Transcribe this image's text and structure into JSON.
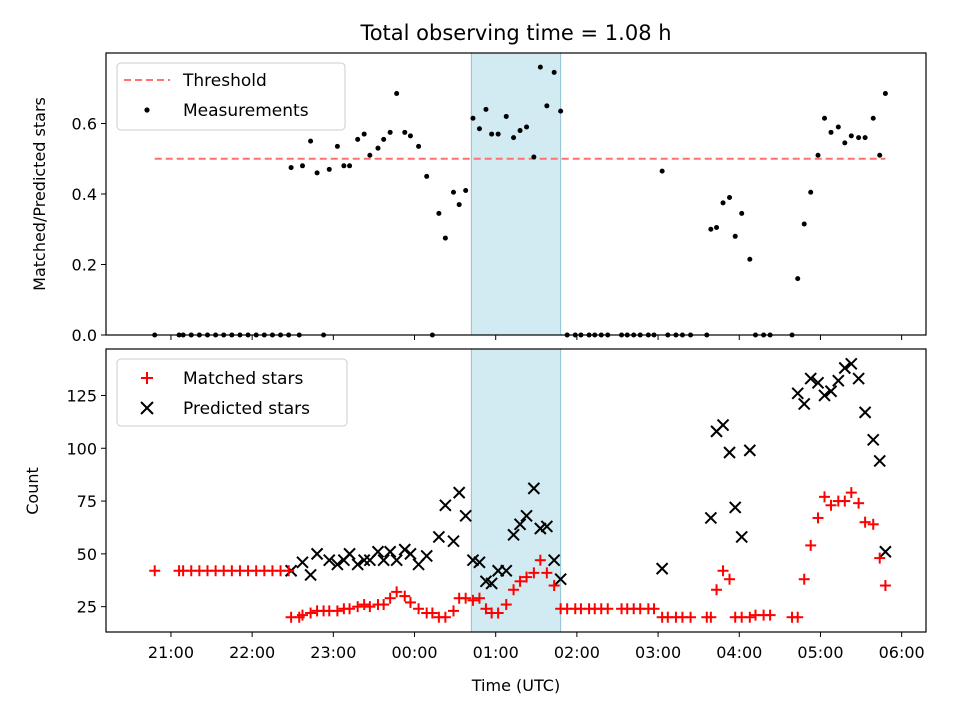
{
  "chart_data": [
    {
      "type": "scatter",
      "title": "Total observing time = 1.08 h",
      "xlabel": "",
      "ylabel": "Matched/Predicted stars",
      "ylim": [
        0,
        0.8
      ],
      "yticks": [
        0.0,
        0.2,
        0.4,
        0.6
      ],
      "ytick_labels": [
        "0.0",
        "0.2",
        "0.4",
        "0.6"
      ],
      "xlim_hours": [
        20.2,
        30.3
      ],
      "highlight_span_hours": [
        24.7,
        25.8
      ],
      "highlight_color": "#add8e6",
      "legend_position": "upper left",
      "threshold": {
        "name": "Threshold",
        "value": 0.5,
        "x_range_hours": [
          20.8,
          29.8
        ],
        "color": "#ff7070"
      },
      "series": [
        {
          "name": "Measurements",
          "color": "#000000",
          "marker": "dot",
          "points": [
            [
              20.8,
              0
            ],
            [
              21.1,
              0
            ],
            [
              21.15,
              0
            ],
            [
              21.25,
              0
            ],
            [
              21.35,
              0
            ],
            [
              21.45,
              0
            ],
            [
              21.55,
              0
            ],
            [
              21.65,
              0
            ],
            [
              21.75,
              0
            ],
            [
              21.85,
              0
            ],
            [
              21.95,
              0
            ],
            [
              22.05,
              0
            ],
            [
              22.15,
              0
            ],
            [
              22.25,
              0
            ],
            [
              22.35,
              0
            ],
            [
              22.45,
              0
            ],
            [
              22.48,
              0.475
            ],
            [
              22.58,
              0
            ],
            [
              22.62,
              0.48
            ],
            [
              22.72,
              0.55
            ],
            [
              22.8,
              0.46
            ],
            [
              22.88,
              0
            ],
            [
              22.95,
              0.47
            ],
            [
              23.05,
              0.535
            ],
            [
              23.13,
              0.48
            ],
            [
              23.2,
              0.48
            ],
            [
              23.3,
              0.555
            ],
            [
              23.38,
              0.57
            ],
            [
              23.45,
              0.51
            ],
            [
              23.55,
              0.53
            ],
            [
              23.62,
              0.555
            ],
            [
              23.7,
              0.575
            ],
            [
              23.78,
              0.685
            ],
            [
              23.88,
              0.575
            ],
            [
              23.95,
              0.565
            ],
            [
              24.05,
              0.535
            ],
            [
              24.15,
              0.45
            ],
            [
              24.22,
              0
            ],
            [
              24.3,
              0.345
            ],
            [
              24.38,
              0.275
            ],
            [
              24.48,
              0.405
            ],
            [
              24.55,
              0.37
            ],
            [
              24.63,
              0.41
            ],
            [
              24.72,
              0.615
            ],
            [
              24.8,
              0.585
            ],
            [
              24.88,
              0.64
            ],
            [
              24.95,
              0.57
            ],
            [
              25.03,
              0.57
            ],
            [
              25.13,
              0.62
            ],
            [
              25.22,
              0.56
            ],
            [
              25.3,
              0.58
            ],
            [
              25.38,
              0.59
            ],
            [
              25.47,
              0.505
            ],
            [
              25.55,
              0.76
            ],
            [
              25.63,
              0.65
            ],
            [
              25.72,
              0.745
            ],
            [
              25.8,
              0.635
            ],
            [
              25.88,
              0
            ],
            [
              25.98,
              0
            ],
            [
              26.05,
              0
            ],
            [
              26.15,
              0
            ],
            [
              26.22,
              0
            ],
            [
              26.3,
              0
            ],
            [
              26.38,
              0
            ],
            [
              26.55,
              0
            ],
            [
              26.62,
              0
            ],
            [
              26.7,
              0
            ],
            [
              26.78,
              0
            ],
            [
              26.88,
              0
            ],
            [
              26.95,
              0
            ],
            [
              27.05,
              0.465
            ],
            [
              27.12,
              0
            ],
            [
              27.22,
              0
            ],
            [
              27.3,
              0
            ],
            [
              27.4,
              0
            ],
            [
              27.6,
              0
            ],
            [
              27.65,
              0.3
            ],
            [
              27.72,
              0.305
            ],
            [
              27.8,
              0.375
            ],
            [
              27.88,
              0.39
            ],
            [
              27.95,
              0.28
            ],
            [
              28.03,
              0.345
            ],
            [
              28.13,
              0.215
            ],
            [
              28.2,
              0
            ],
            [
              28.3,
              0
            ],
            [
              28.38,
              0
            ],
            [
              28.65,
              0
            ],
            [
              28.72,
              0.16
            ],
            [
              28.8,
              0.315
            ],
            [
              28.88,
              0.405
            ],
            [
              28.97,
              0.51
            ],
            [
              29.05,
              0.615
            ],
            [
              29.13,
              0.575
            ],
            [
              29.22,
              0.59
            ],
            [
              29.3,
              0.545
            ],
            [
              29.38,
              0.565
            ],
            [
              29.47,
              0.56
            ],
            [
              29.55,
              0.56
            ],
            [
              29.65,
              0.615
            ],
            [
              29.73,
              0.51
            ],
            [
              29.8,
              0.685
            ]
          ]
        }
      ]
    },
    {
      "type": "scatter",
      "xlabel": "Time (UTC)",
      "ylabel": "Count",
      "ylim": [
        13,
        147
      ],
      "yticks": [
        25,
        50,
        75,
        100,
        125
      ],
      "ytick_labels": [
        "25",
        "50",
        "75",
        "100",
        "125"
      ],
      "xlim_hours": [
        20.2,
        30.3
      ],
      "xticks_hours": [
        21,
        22,
        23,
        24,
        25,
        26,
        27,
        28,
        29,
        30
      ],
      "xtick_labels": [
        "21:00",
        "22:00",
        "23:00",
        "00:00",
        "01:00",
        "02:00",
        "03:00",
        "04:00",
        "05:00",
        "06:00"
      ],
      "highlight_span_hours": [
        24.7,
        25.8
      ],
      "highlight_color": "#add8e6",
      "legend_position": "upper left",
      "series": [
        {
          "name": "Matched stars",
          "color": "#ff0000",
          "marker": "plus",
          "points": [
            [
              20.8,
              42
            ],
            [
              21.1,
              42
            ],
            [
              21.15,
              42
            ],
            [
              21.25,
              42
            ],
            [
              21.35,
              42
            ],
            [
              21.45,
              42
            ],
            [
              21.55,
              42
            ],
            [
              21.65,
              42
            ],
            [
              21.75,
              42
            ],
            [
              21.85,
              42
            ],
            [
              21.95,
              42
            ],
            [
              22.05,
              42
            ],
            [
              22.15,
              42
            ],
            [
              22.25,
              42
            ],
            [
              22.35,
              42
            ],
            [
              22.45,
              42
            ],
            [
              22.48,
              20
            ],
            [
              22.58,
              20
            ],
            [
              22.62,
              21
            ],
            [
              22.72,
              22
            ],
            [
              22.8,
              23
            ],
            [
              22.88,
              23
            ],
            [
              22.95,
              23
            ],
            [
              23.05,
              23
            ],
            [
              23.13,
              24
            ],
            [
              23.2,
              24
            ],
            [
              23.3,
              25
            ],
            [
              23.38,
              26
            ],
            [
              23.45,
              25
            ],
            [
              23.55,
              26
            ],
            [
              23.62,
              26
            ],
            [
              23.7,
              29
            ],
            [
              23.78,
              32
            ],
            [
              23.88,
              30
            ],
            [
              23.95,
              27
            ],
            [
              24.05,
              24
            ],
            [
              24.15,
              22
            ],
            [
              24.22,
              22
            ],
            [
              24.3,
              20
            ],
            [
              24.38,
              20
            ],
            [
              24.48,
              23
            ],
            [
              24.55,
              29
            ],
            [
              24.63,
              29
            ],
            [
              24.72,
              28
            ],
            [
              24.8,
              29
            ],
            [
              24.88,
              24
            ],
            [
              24.95,
              22
            ],
            [
              25.03,
              22
            ],
            [
              25.13,
              26
            ],
            [
              25.22,
              33
            ],
            [
              25.3,
              37
            ],
            [
              25.38,
              39
            ],
            [
              25.47,
              41
            ],
            [
              25.55,
              47
            ],
            [
              25.63,
              41
            ],
            [
              25.72,
              35
            ],
            [
              25.8,
              24
            ],
            [
              25.88,
              24
            ],
            [
              25.98,
              24
            ],
            [
              26.05,
              24
            ],
            [
              26.15,
              24
            ],
            [
              26.22,
              24
            ],
            [
              26.3,
              24
            ],
            [
              26.38,
              24
            ],
            [
              26.55,
              24
            ],
            [
              26.62,
              24
            ],
            [
              26.7,
              24
            ],
            [
              26.78,
              24
            ],
            [
              26.88,
              24
            ],
            [
              26.95,
              24
            ],
            [
              27.05,
              20
            ],
            [
              27.12,
              20
            ],
            [
              27.22,
              20
            ],
            [
              27.3,
              20
            ],
            [
              27.4,
              20
            ],
            [
              27.6,
              20
            ],
            [
              27.65,
              20
            ],
            [
              27.72,
              33
            ],
            [
              27.8,
              42
            ],
            [
              27.88,
              38
            ],
            [
              27.95,
              20
            ],
            [
              28.03,
              20
            ],
            [
              28.13,
              20
            ],
            [
              28.2,
              21
            ],
            [
              28.3,
              21
            ],
            [
              28.38,
              21
            ],
            [
              28.65,
              20
            ],
            [
              28.72,
              20
            ],
            [
              28.8,
              38
            ],
            [
              28.88,
              54
            ],
            [
              28.97,
              67
            ],
            [
              29.05,
              77
            ],
            [
              29.13,
              73
            ],
            [
              29.22,
              75
            ],
            [
              29.3,
              75
            ],
            [
              29.38,
              79
            ],
            [
              29.47,
              74
            ],
            [
              29.55,
              65
            ],
            [
              29.65,
              64
            ],
            [
              29.73,
              48
            ],
            [
              29.8,
              35
            ]
          ]
        },
        {
          "name": "Predicted stars",
          "color": "#000000",
          "marker": "x",
          "points": [
            [
              22.48,
              42
            ],
            [
              22.62,
              46
            ],
            [
              22.72,
              40
            ],
            [
              22.8,
              50
            ],
            [
              22.95,
              47
            ],
            [
              23.05,
              45
            ],
            [
              23.13,
              47
            ],
            [
              23.2,
              50
            ],
            [
              23.3,
              45
            ],
            [
              23.38,
              47
            ],
            [
              23.45,
              47
            ],
            [
              23.55,
              51
            ],
            [
              23.62,
              47
            ],
            [
              23.7,
              51
            ],
            [
              23.78,
              47
            ],
            [
              23.88,
              52
            ],
            [
              23.95,
              50
            ],
            [
              24.05,
              45
            ],
            [
              24.15,
              49
            ],
            [
              24.3,
              58
            ],
            [
              24.38,
              73
            ],
            [
              24.48,
              56
            ],
            [
              24.55,
              79
            ],
            [
              24.63,
              68
            ],
            [
              24.72,
              47
            ],
            [
              24.8,
              46
            ],
            [
              24.88,
              37
            ],
            [
              24.95,
              36
            ],
            [
              25.03,
              42
            ],
            [
              25.13,
              42
            ],
            [
              25.22,
              59
            ],
            [
              25.3,
              64
            ],
            [
              25.38,
              68
            ],
            [
              25.47,
              81
            ],
            [
              25.55,
              62
            ],
            [
              25.63,
              63
            ],
            [
              25.72,
              47
            ],
            [
              25.8,
              38
            ],
            [
              27.05,
              43
            ],
            [
              27.65,
              67
            ],
            [
              27.72,
              108
            ],
            [
              27.8,
              111
            ],
            [
              27.88,
              98
            ],
            [
              27.95,
              72
            ],
            [
              28.03,
              58
            ],
            [
              28.13,
              99
            ],
            [
              28.72,
              126
            ],
            [
              28.8,
              121
            ],
            [
              28.88,
              133
            ],
            [
              28.97,
              131
            ],
            [
              29.05,
              125
            ],
            [
              29.13,
              127
            ],
            [
              29.22,
              132
            ],
            [
              29.3,
              138
            ],
            [
              29.38,
              140
            ],
            [
              29.47,
              133
            ],
            [
              29.55,
              117
            ],
            [
              29.65,
              104
            ],
            [
              29.73,
              94
            ],
            [
              29.8,
              51
            ]
          ]
        }
      ]
    }
  ]
}
